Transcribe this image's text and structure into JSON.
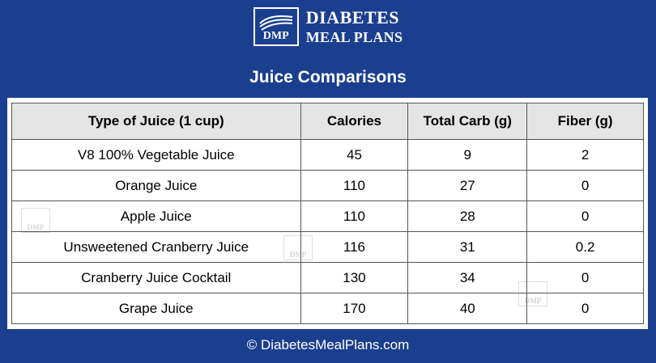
{
  "brand": {
    "abbrev": "DMP",
    "line1": "DIABETES",
    "line2": "MEAL PLANS",
    "tm": "TM",
    "color": "#1b3f8f"
  },
  "title": "Juice Comparisons",
  "chart_data": {
    "type": "table",
    "title": "Juice Comparisons",
    "columns": [
      "Type of Juice (1 cup)",
      "Calories",
      "Total Carb (g)",
      "Fiber (g)"
    ],
    "rows": [
      [
        "V8 100% Vegetable Juice",
        "45",
        "9",
        "2"
      ],
      [
        "Orange Juice",
        "110",
        "27",
        "0"
      ],
      [
        "Apple Juice",
        "110",
        "28",
        "0"
      ],
      [
        "Unsweetened Cranberry Juice",
        "116",
        "31",
        "0.2"
      ],
      [
        "Cranberry Juice Cocktail",
        "130",
        "34",
        "0"
      ],
      [
        "Grape Juice",
        "170",
        "40",
        "0"
      ]
    ]
  },
  "watermark": "DMP",
  "footer": "© DiabetesMealPlans.com"
}
